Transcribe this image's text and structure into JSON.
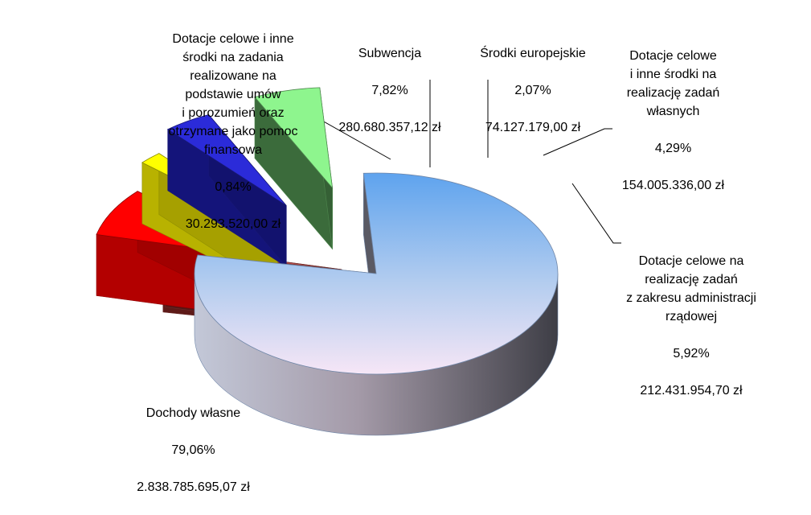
{
  "chart_data": {
    "type": "pie",
    "title": "",
    "currency_unit": "zł",
    "slices": [
      {
        "key": "dochody",
        "name": "Dochody własne",
        "percent": 79.06,
        "percent_label": "79,06%",
        "amount": 2838785695.07,
        "amount_label": "2.838.785.695,07 zł",
        "color": "#86b4ee"
      },
      {
        "key": "pomoc",
        "name": "Dotacje celowe i inne\nśrodki na zadania\nrealizowane na\npodstawie umów\ni porozumień oraz\notrzymane jako pomoc\nfinansowa",
        "percent": 0.84,
        "percent_label": "0,84%",
        "amount": 30293520.0,
        "amount_label": "30.293.520,00 zł",
        "color": "#c0504d"
      },
      {
        "key": "subwencja",
        "name": "Subwencja",
        "percent": 7.82,
        "percent_label": "7,82%",
        "amount": 280680357.12,
        "amount_label": "280.680.357,12 zł",
        "color": "#ff0000"
      },
      {
        "key": "europejskie",
        "name": "Środki europejskie",
        "percent": 2.07,
        "percent_label": "2,07%",
        "amount": 74127179.0,
        "amount_label": "74.127.179,00 zł",
        "color": "#ffff00"
      },
      {
        "key": "wlasne",
        "name": "Dotacje celowe\ni inne środki na\nrealizację zadań\nwłasnych",
        "percent": 4.29,
        "percent_label": "4,29%",
        "amount": 154005336.0,
        "amount_label": "154.005.336,00 zł",
        "color": "#2b2bd9"
      },
      {
        "key": "rzadowe",
        "name": "Dotacje celowe na\nrealizację zadań\nz zakresu administracji\nrządowej",
        "percent": 5.92,
        "percent_label": "5,92%",
        "amount": 212431954.7,
        "amount_label": "212.431.954,70 zł",
        "color": "#8ef58e"
      }
    ]
  }
}
